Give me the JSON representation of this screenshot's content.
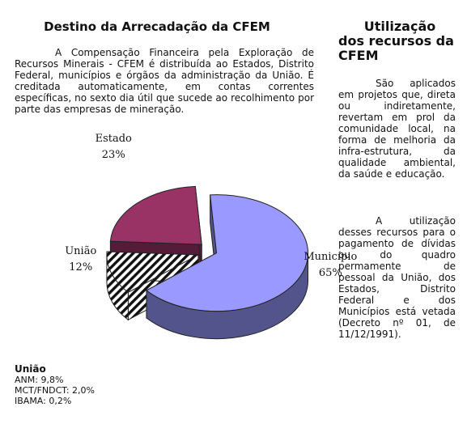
{
  "left": {
    "title": "Destino da Arrecadação da CFEM",
    "paragraph": "A Compensação Financeira pela Exploração de Recursos Minerais - CFEM é distribuída ao Estados, Distrito Federal, municípios e órgãos da administração da União. É creditada automaticamente, em contas correntes específicas, no sexto dia útil que sucede ao recolhimento por parte das empresas de mineração."
  },
  "right": {
    "title_line1": "Utilização",
    "title_line2": "dos recursos da CFEM",
    "paragraph1": "São aplicados em projetos que, direta ou indiretamente, revertam em prol da comunidade local, na forma de melhoria da infra-estrutura, da qualidade ambiental, da saúde e educação.",
    "paragraph2": "A utilização desses recursos para o pagamento de dívidas ou do quadro permamente de pessoal da União, dos Estados, Distrito Federal e dos Municípios está vetada (Decreto nº 01, de 11/12/1991)."
  },
  "chart_data": {
    "type": "pie",
    "title": "",
    "style": "3d-exploded",
    "slices": [
      {
        "label": "Município",
        "value": 65,
        "percent_label": "65%",
        "color": "#9999ff",
        "fill": "solid"
      },
      {
        "label": "União",
        "value": 12,
        "percent_label": "12%",
        "color": "#ffffff",
        "fill": "diagonal-hatch"
      },
      {
        "label": "Estado",
        "value": 23,
        "percent_label": "23%",
        "color": "#993366",
        "fill": "solid"
      }
    ]
  },
  "uniao_breakdown": {
    "header": "União",
    "items": [
      "ANM: 9,8%",
      "MCT/FNDCT: 2,0%",
      "IBAMA: 0,2%"
    ]
  }
}
